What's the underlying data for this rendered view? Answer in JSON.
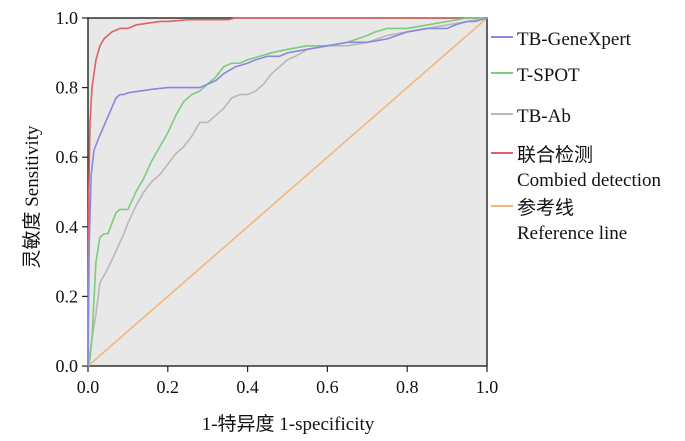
{
  "chart_data": {
    "type": "line",
    "title": "",
    "xlabel": "1-特异度 1-specificity",
    "ylabel": "灵敏度 Sensitivity",
    "xlim": [
      0,
      1
    ],
    "ylim": [
      0,
      1
    ],
    "x_ticks": [
      "0.0",
      "0.2",
      "0.4",
      "0.6",
      "0.8",
      "1.0"
    ],
    "y_ticks": [
      "0.0",
      "0.2",
      "0.4",
      "0.6",
      "0.8",
      "1.0"
    ],
    "grid": false,
    "legend_position": "right",
    "plot_background": "#e8e8e8",
    "series": [
      {
        "name": "TB-GeneXpert",
        "color": "#8888e0",
        "x": [
          0,
          0.003,
          0.008,
          0.015,
          0.025,
          0.04,
          0.055,
          0.07,
          0.08,
          0.09,
          0.1,
          0.13,
          0.16,
          0.2,
          0.24,
          0.28,
          0.3,
          0.32,
          0.34,
          0.37,
          0.4,
          0.42,
          0.45,
          0.48,
          0.5,
          0.55,
          0.6,
          0.65,
          0.7,
          0.75,
          0.8,
          0.85,
          0.9,
          0.92,
          0.95,
          0.97,
          1.0
        ],
        "y": [
          0,
          0.35,
          0.55,
          0.62,
          0.65,
          0.69,
          0.73,
          0.77,
          0.78,
          0.78,
          0.785,
          0.79,
          0.795,
          0.8,
          0.8,
          0.8,
          0.81,
          0.82,
          0.84,
          0.86,
          0.87,
          0.88,
          0.89,
          0.89,
          0.9,
          0.91,
          0.92,
          0.93,
          0.93,
          0.94,
          0.96,
          0.97,
          0.97,
          0.98,
          0.99,
          0.99,
          1.0
        ]
      },
      {
        "name": "T-SPOT",
        "color": "#7ccc7c",
        "x": [
          0,
          0.005,
          0.01,
          0.02,
          0.03,
          0.04,
          0.05,
          0.06,
          0.07,
          0.08,
          0.1,
          0.12,
          0.14,
          0.16,
          0.18,
          0.2,
          0.22,
          0.24,
          0.26,
          0.28,
          0.3,
          0.32,
          0.34,
          0.36,
          0.38,
          0.4,
          0.43,
          0.46,
          0.5,
          0.55,
          0.6,
          0.65,
          0.7,
          0.72,
          0.75,
          0.8,
          0.85,
          0.9,
          0.95,
          1.0
        ],
        "y": [
          0,
          0.02,
          0.08,
          0.3,
          0.37,
          0.38,
          0.38,
          0.41,
          0.44,
          0.45,
          0.45,
          0.5,
          0.54,
          0.59,
          0.63,
          0.67,
          0.72,
          0.76,
          0.78,
          0.79,
          0.81,
          0.83,
          0.86,
          0.87,
          0.87,
          0.88,
          0.89,
          0.9,
          0.91,
          0.92,
          0.92,
          0.93,
          0.95,
          0.96,
          0.97,
          0.97,
          0.98,
          0.99,
          1.0,
          1.0
        ]
      },
      {
        "name": "TB-Ab",
        "color": "#b8b8b8",
        "x": [
          0,
          0.01,
          0.02,
          0.03,
          0.05,
          0.07,
          0.09,
          0.1,
          0.12,
          0.14,
          0.16,
          0.18,
          0.2,
          0.22,
          0.24,
          0.26,
          0.28,
          0.3,
          0.32,
          0.34,
          0.36,
          0.38,
          0.4,
          0.42,
          0.44,
          0.46,
          0.48,
          0.5,
          0.52,
          0.55,
          0.6,
          0.65,
          0.7,
          0.75,
          0.8,
          0.85,
          0.9,
          0.95,
          1.0
        ],
        "y": [
          0,
          0.08,
          0.15,
          0.24,
          0.28,
          0.33,
          0.38,
          0.41,
          0.46,
          0.5,
          0.53,
          0.55,
          0.58,
          0.61,
          0.63,
          0.66,
          0.7,
          0.7,
          0.72,
          0.74,
          0.77,
          0.78,
          0.78,
          0.79,
          0.81,
          0.84,
          0.86,
          0.88,
          0.89,
          0.91,
          0.92,
          0.92,
          0.93,
          0.95,
          0.96,
          0.97,
          0.98,
          0.99,
          1.0
        ]
      },
      {
        "name": "联合检测 Combied detection",
        "color": "#e06060",
        "x": [
          0,
          0.002,
          0.005,
          0.01,
          0.02,
          0.03,
          0.04,
          0.05,
          0.06,
          0.08,
          0.1,
          0.12,
          0.15,
          0.18,
          0.2,
          0.25,
          0.3,
          0.35,
          0.37,
          0.4,
          0.5,
          0.6,
          0.7,
          0.8,
          0.9,
          1.0
        ],
        "y": [
          0,
          0.5,
          0.7,
          0.8,
          0.88,
          0.92,
          0.94,
          0.95,
          0.96,
          0.97,
          0.97,
          0.98,
          0.985,
          0.99,
          0.99,
          0.995,
          0.995,
          0.995,
          1.0,
          1.0,
          1.0,
          1.0,
          1.0,
          1.0,
          1.0,
          1.0
        ]
      },
      {
        "name": "参考线 Reference line",
        "color": "#f2b877",
        "x": [
          0,
          1
        ],
        "y": [
          0,
          1
        ]
      }
    ],
    "legend": [
      {
        "lines": [
          "TB-GeneXpert"
        ],
        "color": "#8888e0"
      },
      {
        "lines": [
          "T-SPOT"
        ],
        "color": "#7ccc7c"
      },
      {
        "lines": [
          "TB-Ab"
        ],
        "color": "#b8b8b8"
      },
      {
        "lines": [
          "联合检测",
          "Combied detection"
        ],
        "color": "#e06060"
      },
      {
        "lines": [
          "参考线",
          "Reference line"
        ],
        "color": "#f2b877"
      }
    ]
  }
}
